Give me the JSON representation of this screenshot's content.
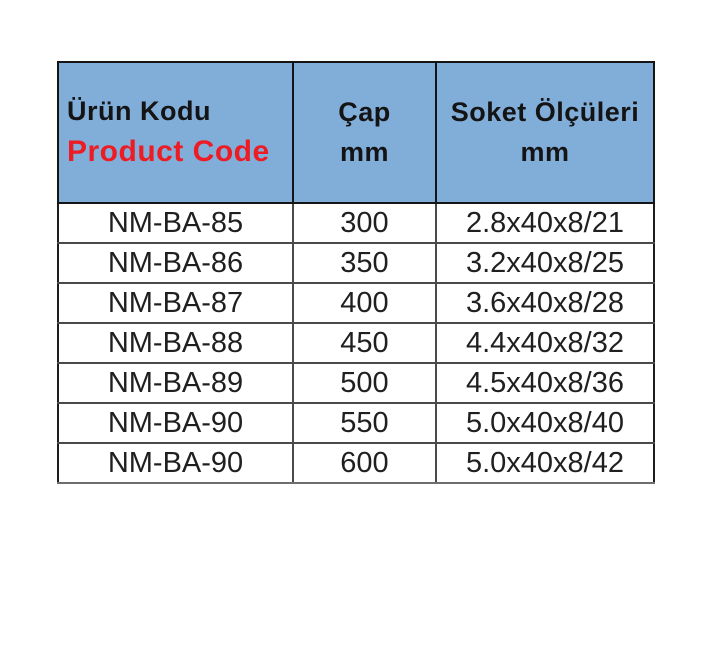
{
  "table": {
    "header": {
      "product_code_tr": "Ürün Kodu",
      "product_code_en": "Product Code",
      "cap_label": "Çap",
      "cap_unit": "mm",
      "soket_label": "Soket Ölçüleri",
      "soket_unit": "mm"
    },
    "rows": [
      {
        "code": "NM-BA-85",
        "cap_mm": "300",
        "soket": "2.8x40x8/21"
      },
      {
        "code": "NM-BA-86",
        "cap_mm": "350",
        "soket": "3.2x40x8/25"
      },
      {
        "code": "NM-BA-87",
        "cap_mm": "400",
        "soket": "3.6x40x8/28"
      },
      {
        "code": "NM-BA-88",
        "cap_mm": "450",
        "soket": "4.4x40x8/32"
      },
      {
        "code": "NM-BA-89",
        "cap_mm": "500",
        "soket": "4.5x40x8/36"
      },
      {
        "code": "NM-BA-90",
        "cap_mm": "550",
        "soket": "5.0x40x8/40"
      },
      {
        "code": "NM-BA-90",
        "cap_mm": "600",
        "soket": "5.0x40x8/42"
      }
    ],
    "colors": {
      "header_bg": "#81ADD9",
      "accent_red": "#ED1C24",
      "text": "#141414"
    }
  }
}
